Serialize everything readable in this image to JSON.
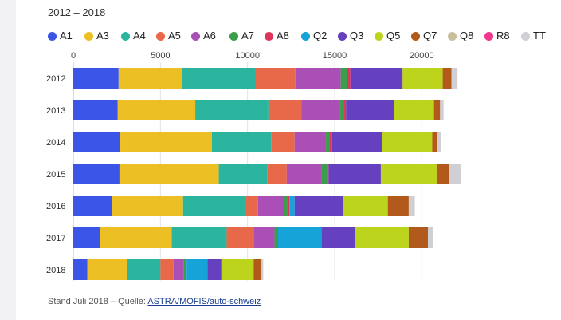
{
  "subtitle": "2012 – 2018",
  "source": {
    "prefix": "Stand Juli 2018 – Quelle: ",
    "link_text": "ASTRA/MOFIS/auto-schweiz"
  },
  "chart_data": {
    "type": "bar",
    "orientation": "horizontal",
    "stacked": true,
    "title": "",
    "subtitle": "2012 – 2018",
    "xlabel": "",
    "ylabel": "",
    "xlim": [
      0,
      22500
    ],
    "x_ticks": [
      0,
      5000,
      10000,
      15000,
      20000
    ],
    "x_tick_labels": [
      "0",
      "5000",
      "10000",
      "15000",
      "20000"
    ],
    "x_axis_position": "top",
    "grid": true,
    "legend_position": "top",
    "categories": [
      "2012",
      "2013",
      "2014",
      "2015",
      "2016",
      "2017",
      "2018"
    ],
    "series": [
      {
        "name": "A1",
        "color": "#3b55e6",
        "values": [
          2600,
          2550,
          2700,
          2650,
          2200,
          1550,
          800
        ]
      },
      {
        "name": "A3",
        "color": "#ecbf25",
        "values": [
          3650,
          4450,
          5250,
          5700,
          4100,
          4100,
          2300
        ]
      },
      {
        "name": "A4",
        "color": "#2bb59e",
        "values": [
          4200,
          4200,
          3400,
          2800,
          3600,
          3150,
          1900
        ]
      },
      {
        "name": "A5",
        "color": "#e8694a",
        "values": [
          2300,
          1900,
          1350,
          1100,
          700,
          1550,
          750
        ]
      },
      {
        "name": "A6",
        "color": "#a94fb5",
        "values": [
          2600,
          2200,
          1800,
          2000,
          1500,
          1200,
          600
        ]
      },
      {
        "name": "A7",
        "color": "#3a9e4a",
        "values": [
          350,
          250,
          200,
          300,
          200,
          150,
          100
        ]
      },
      {
        "name": "A8",
        "color": "#e0345c",
        "values": [
          200,
          100,
          150,
          100,
          100,
          50,
          50
        ]
      },
      {
        "name": "Q2",
        "color": "#16a3d8",
        "values": [
          0,
          0,
          0,
          0,
          300,
          2500,
          1200
        ]
      },
      {
        "name": "Q3",
        "color": "#6541c0",
        "values": [
          3000,
          2750,
          2850,
          3000,
          2800,
          1900,
          800
        ]
      },
      {
        "name": "Q5",
        "color": "#bcd41c",
        "values": [
          2300,
          2300,
          2900,
          3200,
          2550,
          3100,
          1850
        ]
      },
      {
        "name": "Q7",
        "color": "#b15a1c",
        "values": [
          500,
          350,
          300,
          700,
          1200,
          1100,
          450
        ]
      },
      {
        "name": "Q8",
        "color": "#c7c09a",
        "values": [
          0,
          0,
          0,
          0,
          0,
          0,
          0
        ]
      },
      {
        "name": "R8",
        "color": "#f2378d",
        "values": [
          0,
          0,
          0,
          0,
          0,
          0,
          0
        ]
      },
      {
        "name": "TT",
        "color": "#cfcfd4",
        "values": [
          350,
          200,
          200,
          700,
          350,
          300,
          100
        ]
      }
    ]
  }
}
